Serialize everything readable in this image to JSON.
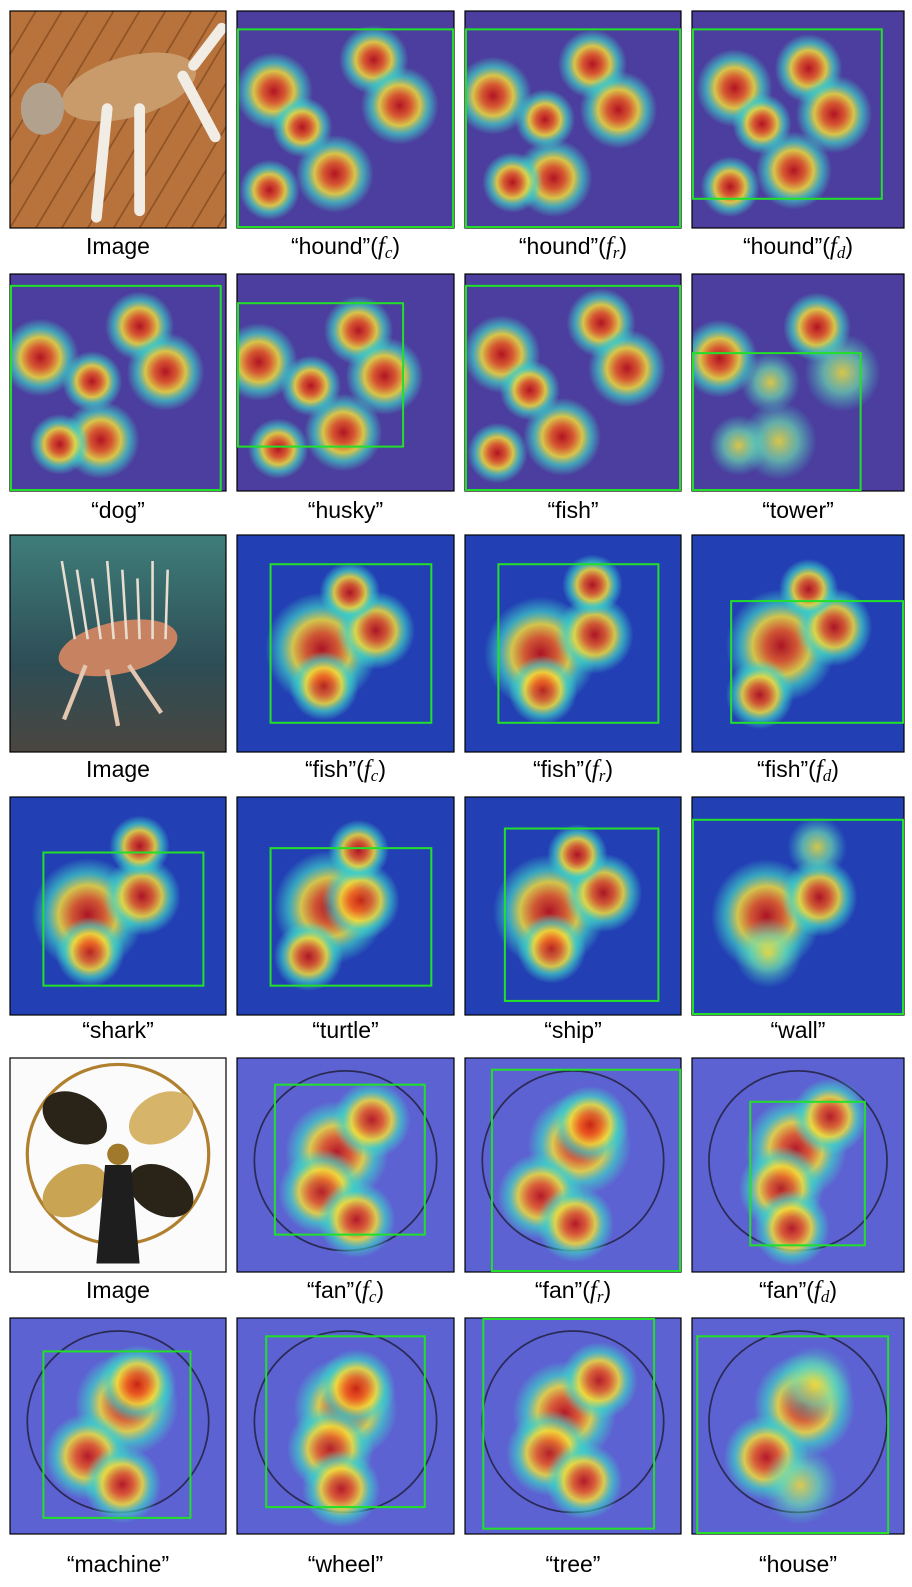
{
  "figure": {
    "rows": [
      {
        "panels": [
          {
            "caption": "Image"
          },
          {
            "caption": "“hound”",
            "formula": {
              "prefix": "(",
              "symbol": "f",
              "subscript": "c",
              "suffix": ")"
            }
          },
          {
            "caption": "“hound”",
            "formula": {
              "prefix": "(",
              "symbol": "f",
              "subscript": "r",
              "suffix": ")"
            }
          },
          {
            "caption": "“hound”",
            "formula": {
              "prefix": "(",
              "symbol": "f",
              "subscript": "d",
              "suffix": ")"
            }
          }
        ]
      },
      {
        "panels": [
          {
            "caption": "“dog”"
          },
          {
            "caption": "“husky”"
          },
          {
            "caption": "“fish”"
          },
          {
            "caption": "“tower”"
          }
        ]
      },
      {
        "panels": [
          {
            "caption": "Image"
          },
          {
            "caption": "“fish”",
            "formula": {
              "prefix": "(",
              "symbol": "f",
              "subscript": "c",
              "suffix": ")"
            }
          },
          {
            "caption": "“fish”",
            "formula": {
              "prefix": "(",
              "symbol": "f",
              "subscript": "r",
              "suffix": ")"
            }
          },
          {
            "caption": "“fish”",
            "formula": {
              "prefix": "(",
              "symbol": "f",
              "subscript": "d",
              "suffix": ")"
            }
          }
        ]
      },
      {
        "panels": [
          {
            "caption": "“shark”"
          },
          {
            "caption": "“turtle”"
          },
          {
            "caption": "“ship”"
          },
          {
            "caption": "“wall”"
          }
        ]
      },
      {
        "panels": [
          {
            "caption": "Image"
          },
          {
            "caption": "“fan”",
            "formula": {
              "prefix": "(",
              "symbol": "f",
              "subscript": "c",
              "suffix": ")"
            }
          },
          {
            "caption": "“fan”",
            "formula": {
              "prefix": "(",
              "symbol": "f",
              "subscript": "r",
              "suffix": ")"
            }
          },
          {
            "caption": "“fan”",
            "formula": {
              "prefix": "(",
              "symbol": "f",
              "subscript": "d",
              "suffix": ")"
            }
          }
        ]
      },
      {
        "panels": [
          {
            "caption": "“machine”"
          },
          {
            "caption": "“wheel”"
          },
          {
            "caption": "“tree”"
          },
          {
            "caption": "“house”"
          }
        ]
      }
    ]
  }
}
